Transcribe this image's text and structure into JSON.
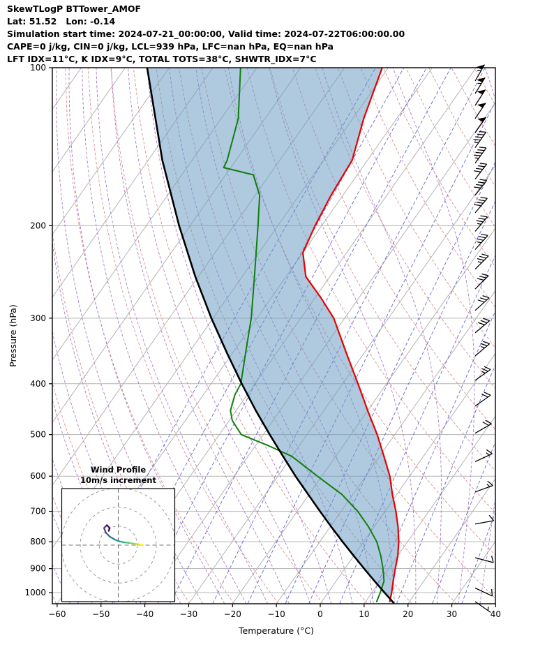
{
  "header": {
    "line1": "SkewTLogP BTTower_AMOF",
    "line2": "Lat: 51.52   Lon: -0.14",
    "line3": "Simulation start time: 2024-07-21_00:00:00, Valid time: 2024-07-22T06:00:00.00",
    "line4": "CAPE=0 j/kg, CIN=0 j/kg, LCL=939 hPa, LFC=nan hPa, EQ=nan hPa",
    "line5": "LFT IDX=11°C, K IDX=9°C, TOTAL TOTS=38°C, SHWTR_IDX=7°C"
  },
  "chart_data": {
    "type": "skewt-logp",
    "pressure_axis": {
      "label": "Pressure (hPa)",
      "scale": "log",
      "range": [
        100,
        1050
      ],
      "tick_values": [
        100,
        200,
        300,
        400,
        500,
        600,
        700,
        800,
        900,
        1000
      ],
      "ticks": [
        "100",
        "200",
        "300",
        "400",
        "500",
        "600",
        "700",
        "800",
        "900",
        "1000"
      ]
    },
    "temperature_axis": {
      "label": "Temperature (°C)",
      "range_at_surface": [
        -60,
        40
      ],
      "tick_values": [
        -60,
        -50,
        -40,
        -30,
        -20,
        -10,
        0,
        10,
        20,
        30,
        40
      ],
      "ticks": [
        "−60",
        "−50",
        "−40",
        "−30",
        "−20",
        "−10",
        "0",
        "10",
        "20",
        "30",
        "40"
      ]
    },
    "skew": {
      "isotherm_step_c": 10,
      "isotherm_range_c": [
        -150,
        40
      ]
    },
    "reference_lines": {
      "dry_adiabats_theta_k": [
        210,
        220,
        230,
        240,
        250,
        260,
        270,
        280,
        290,
        300,
        310,
        320,
        330,
        340,
        350,
        360,
        370,
        380,
        390,
        400,
        410,
        420,
        430,
        440
      ],
      "moist_adiabats_thetaw_c": [
        -60,
        -55,
        -50,
        -45,
        -40,
        -35,
        -30,
        -25,
        -20,
        -15,
        -10,
        -5,
        0,
        5,
        10,
        15,
        20,
        25,
        30,
        35,
        40
      ],
      "mixing_ratio_g_kg": [
        0.02,
        0.05,
        0.1,
        0.2,
        0.5,
        1,
        2,
        3,
        5,
        8,
        12,
        20,
        30
      ],
      "colors": {
        "isotherm": "#b3b3b3",
        "pressure_grid": "#b3b3b3",
        "dry_adiabat": "#de8f8f",
        "moist_adiabat": "#ab7fc9",
        "mixing_ratio": "#6767d2"
      }
    },
    "series": [
      {
        "name": "temperature",
        "color": "#e80000",
        "width": 2.2,
        "points": [
          [
            1040,
            15.5
          ],
          [
            1000,
            14.5
          ],
          [
            950,
            13.0
          ],
          [
            900,
            11.5
          ],
          [
            850,
            10.0
          ],
          [
            800,
            8.0
          ],
          [
            750,
            5.5
          ],
          [
            700,
            2.5
          ],
          [
            650,
            -1.0
          ],
          [
            600,
            -4.5
          ],
          [
            550,
            -9.0
          ],
          [
            500,
            -14.0
          ],
          [
            450,
            -20.0
          ],
          [
            400,
            -26.5
          ],
          [
            350,
            -34.0
          ],
          [
            300,
            -42.5
          ],
          [
            275,
            -48.5
          ],
          [
            250,
            -55.5
          ],
          [
            225,
            -60.0
          ],
          [
            200,
            -61.5
          ],
          [
            175,
            -62.7
          ],
          [
            150,
            -63.5
          ],
          [
            125,
            -67.5
          ],
          [
            100,
            -71.4
          ]
        ]
      },
      {
        "name": "dewpoint",
        "color": "#0f7f0f",
        "width": 2.0,
        "points": [
          [
            1040,
            12.5
          ],
          [
            1000,
            11.9
          ],
          [
            950,
            10.9
          ],
          [
            900,
            8.7
          ],
          [
            850,
            6.1
          ],
          [
            800,
            3.0
          ],
          [
            750,
            -1.2
          ],
          [
            700,
            -6.2
          ],
          [
            650,
            -12.5
          ],
          [
            600,
            -21.0
          ],
          [
            550,
            -30.0
          ],
          [
            525,
            -37.0
          ],
          [
            500,
            -45.0
          ],
          [
            470,
            -49.3
          ],
          [
            450,
            -51.3
          ],
          [
            420,
            -52.8
          ],
          [
            400,
            -53.2
          ],
          [
            350,
            -57.0
          ],
          [
            300,
            -61.3
          ],
          [
            250,
            -67.2
          ],
          [
            200,
            -74.5
          ],
          [
            175,
            -79.0
          ],
          [
            160,
            -83.7
          ],
          [
            155,
            -91.6
          ],
          [
            150,
            -92.0
          ],
          [
            125,
            -96.1
          ],
          [
            100,
            -103.7
          ]
        ]
      },
      {
        "name": "parcel",
        "color": "#000000",
        "width": 2.6,
        "points": [
          [
            1045,
            16.5
          ],
          [
            1000,
            12.9
          ],
          [
            950,
            8.7
          ],
          [
            900,
            4.4
          ],
          [
            850,
            -0.1
          ],
          [
            800,
            -4.8
          ],
          [
            750,
            -9.7
          ],
          [
            700,
            -14.8
          ],
          [
            650,
            -20.2
          ],
          [
            600,
            -26.0
          ],
          [
            550,
            -32.0
          ],
          [
            500,
            -38.5
          ],
          [
            450,
            -45.5
          ],
          [
            400,
            -53.0
          ],
          [
            350,
            -61.2
          ],
          [
            300,
            -70.4
          ],
          [
            250,
            -80.7
          ],
          [
            200,
            -92.5
          ],
          [
            150,
            -106.8
          ],
          [
            100,
            -125.0
          ]
        ]
      }
    ],
    "cin_shading": {
      "color": "#6d9dc5",
      "opacity": 0.55,
      "between": [
        "parcel",
        "temperature"
      ]
    },
    "wind_barbs": {
      "color": "#000000",
      "barbs": [
        [
          1040,
          5,
          125
        ],
        [
          980,
          8,
          115
        ],
        [
          858,
          10,
          105
        ],
        [
          740,
          10,
          80
        ],
        [
          643,
          15,
          70
        ],
        [
          563,
          15,
          65
        ],
        [
          497,
          20,
          60
        ],
        [
          441,
          20,
          55
        ],
        [
          394,
          25,
          55
        ],
        [
          354,
          25,
          50
        ],
        [
          320,
          30,
          50
        ],
        [
          290,
          30,
          48
        ],
        [
          264,
          30,
          45
        ],
        [
          242,
          35,
          45
        ],
        [
          222,
          35,
          42
        ],
        [
          205,
          35,
          40
        ],
        [
          189,
          40,
          40
        ],
        [
          175,
          40,
          38
        ],
        [
          163,
          40,
          38
        ],
        [
          152,
          45,
          36
        ],
        [
          142,
          45,
          35
        ],
        [
          133,
          50,
          35
        ],
        [
          125,
          50,
          34
        ],
        [
          118,
          50,
          33
        ],
        [
          112,
          55,
          32
        ],
        [
          106,
          55,
          30
        ]
      ]
    },
    "hodograph": {
      "title": "Wind Profile",
      "subtitle": "10m/s increment",
      "ring_step_ms": 10,
      "rings_ms": [
        10,
        20,
        30
      ],
      "trace_uv_ms": [
        [
          13,
          0
        ],
        [
          10.5,
          0.5
        ],
        [
          8,
          0.8
        ],
        [
          5.5,
          1.2
        ],
        [
          3,
          1.5
        ],
        [
          0.5,
          2
        ],
        [
          -2,
          3
        ],
        [
          -4.5,
          4.5
        ],
        [
          -6.5,
          6.5
        ],
        [
          -7.5,
          9
        ],
        [
          -6,
          10.5
        ],
        [
          -4.5,
          9
        ],
        [
          -5,
          7.5
        ]
      ],
      "trace_colors": [
        "#fde725",
        "#bddf26",
        "#7ad151",
        "#44bf70",
        "#22a884",
        "#21918c",
        "#2a788e",
        "#355f8d",
        "#414487",
        "#46327e",
        "#440154",
        "#440154"
      ]
    }
  }
}
